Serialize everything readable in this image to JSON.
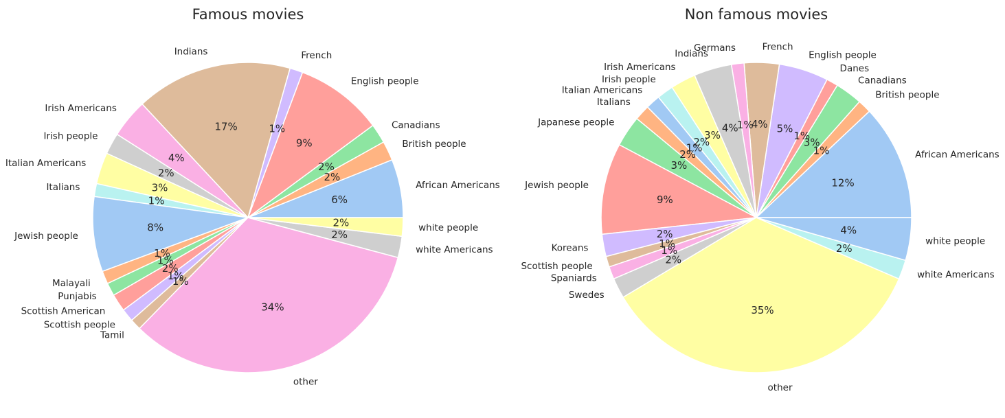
{
  "chart_data": [
    {
      "type": "pie",
      "title": "Famous movies",
      "categories": [
        "African Americans",
        "British people",
        "Canadians",
        "English people",
        "French",
        "Indians",
        "Irish Americans",
        "Irish people",
        "Italian Americans",
        "Italians",
        "Jewish people",
        "Malayali",
        "Punjabis",
        "Scottish American",
        "Scottish people",
        "Tamil",
        "other",
        "white Americans",
        "white people"
      ],
      "values": [
        6.3,
        2.1,
        2.1,
        9.5,
        1.4,
        16.9,
        4.2,
        2.3,
        3.4,
        1.4,
        8.1,
        1.4,
        1.4,
        1.9,
        1.4,
        1.2,
        34.4,
        2.3,
        2.0
      ],
      "pct_labels": [
        "6%",
        "2%",
        "2%",
        "9%",
        "1%",
        "17%",
        "4%",
        "2%",
        "3%",
        "1%",
        "8%",
        "1%",
        "1%",
        "2%",
        "1%",
        "1%",
        "34%",
        "2%",
        "2%"
      ],
      "colors": [
        "#a1c9f4",
        "#ffb482",
        "#8de5a1",
        "#ff9f9b",
        "#d0bbff",
        "#debb9b",
        "#fab0e4",
        "#cfcfcf",
        "#fffea3",
        "#b9f2f0",
        "#a1c9f4",
        "#ffb482",
        "#8de5a1",
        "#ff9f9b",
        "#d0bbff",
        "#debb9b",
        "#fab0e4",
        "#cfcfcf",
        "#fffea3"
      ],
      "start_angle_deg": 0,
      "direction": "counterclockwise"
    },
    {
      "type": "pie",
      "title": "Non famous movies",
      "categories": [
        "African Americans",
        "British people",
        "Canadians",
        "Danes",
        "English people",
        "French",
        "Germans",
        "Indians",
        "Irish Americans",
        "Irish people",
        "Italian Americans",
        "Italians",
        "Japanese people",
        "Jewish people",
        "Koreans",
        "Scottish people",
        "Spaniards",
        "Swedes",
        "other",
        "white Americans",
        "white people"
      ],
      "values": [
        11.9,
        1.4,
        2.8,
        1.2,
        5.1,
        3.6,
        1.3,
        3.9,
        2.6,
        1.7,
        1.5,
        1.6,
        3.2,
        9.4,
        2.3,
        1.1,
        1.3,
        2.1,
        34.6,
        2.0,
        4.4
      ],
      "pct_labels": [
        "12%",
        "1%",
        "3%",
        "1%",
        "5%",
        "4%",
        "1%",
        "4%",
        "3%",
        "2%",
        "1%",
        "2%",
        "3%",
        "9%",
        "2%",
        "1%",
        "1%",
        "2%",
        "35%",
        "2%",
        "4%"
      ],
      "colors": [
        "#a1c9f4",
        "#ffb482",
        "#8de5a1",
        "#ff9f9b",
        "#d0bbff",
        "#debb9b",
        "#fab0e4",
        "#cfcfcf",
        "#fffea3",
        "#b9f2f0",
        "#a1c9f4",
        "#ffb482",
        "#8de5a1",
        "#ff9f9b",
        "#d0bbff",
        "#debb9b",
        "#fab0e4",
        "#cfcfcf",
        "#fffea3",
        "#b9f2f0",
        "#a1c9f4"
      ],
      "start_angle_deg": 0,
      "direction": "counterclockwise"
    }
  ]
}
